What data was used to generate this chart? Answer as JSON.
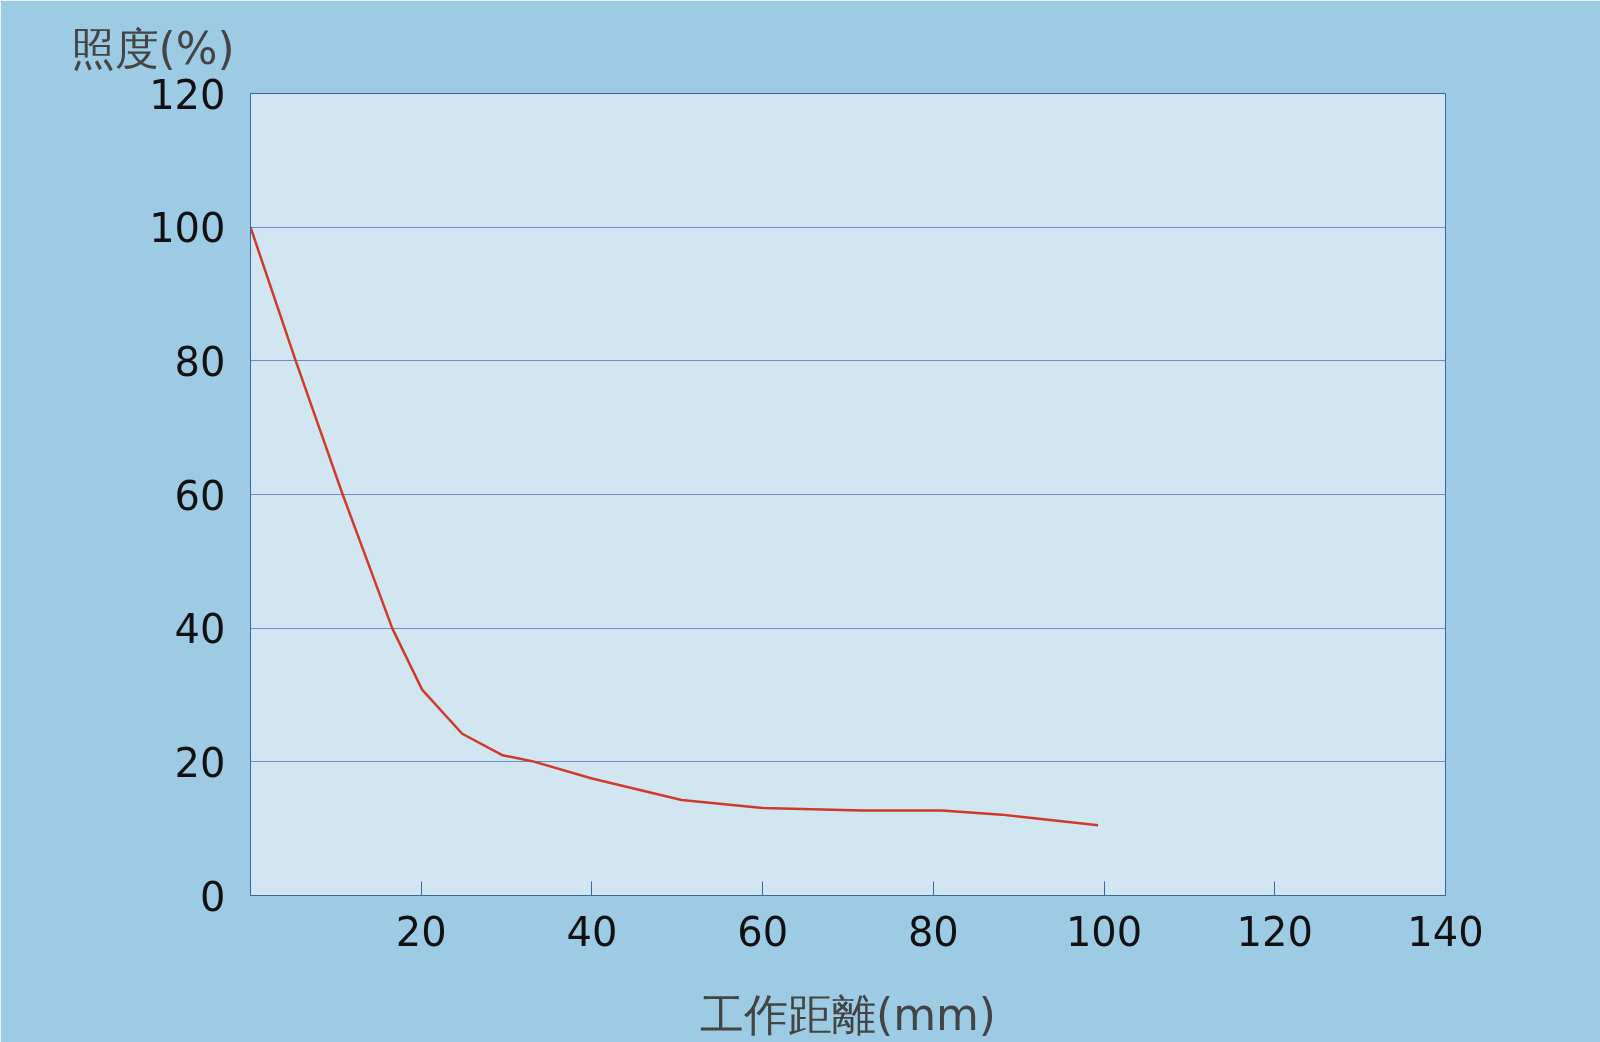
{
  "chart_data": {
    "type": "line",
    "xlabel": "工作距離(mm)",
    "ylabel": "照度(%)",
    "x": [
      0,
      5.3,
      10.8,
      16.6,
      20.1,
      24.8,
      29.5,
      33,
      40,
      50.5,
      60,
      71.6,
      81,
      88,
      99.3
    ],
    "series": [
      {
        "color": "#d03a2a",
        "values": [
          100,
          80,
          60,
          40,
          30.8,
          24.2,
          21,
          20.1,
          17.5,
          14.3,
          13.1,
          12.7,
          12.7,
          12.1,
          10.5
        ]
      }
    ],
    "xlim": [
      0,
      140
    ],
    "ylim": [
      0,
      120
    ],
    "xticks": [
      {
        "value": 0,
        "label": null
      },
      20,
      40,
      60,
      80,
      100,
      120,
      140
    ],
    "yticks": [
      0,
      20,
      40,
      60,
      80,
      100,
      120
    ],
    "grid": "y",
    "marker": "none",
    "line_style": "solid"
  }
}
